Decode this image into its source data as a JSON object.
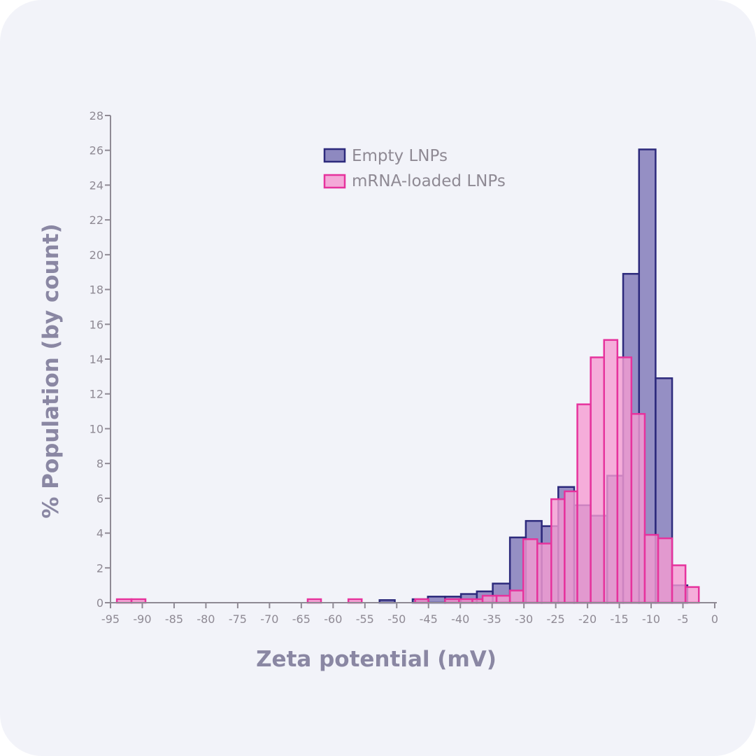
{
  "chart_data": {
    "type": "bar",
    "subtype": "overlapping-histogram",
    "xlabel": "Zeta potential (mV)",
    "ylabel": "% Population (by count)",
    "xlim": [
      -95,
      0
    ],
    "ylim": [
      0,
      28
    ],
    "xticks": [
      -95,
      -90,
      -85,
      -80,
      -75,
      -70,
      -65,
      -60,
      -55,
      -50,
      -45,
      -40,
      -35,
      -30,
      -25,
      -20,
      -15,
      -10,
      -5,
      0
    ],
    "yticks": [
      0,
      2,
      4,
      6,
      8,
      10,
      12,
      14,
      16,
      18,
      20,
      22,
      24,
      26,
      28
    ],
    "grid": false,
    "legend_position": "top-center",
    "series": [
      {
        "name": "Empty LNPs",
        "fill": "#7d76b6",
        "stroke": "#2d2a7c",
        "bins": [
          [
            -52.7,
            -50.3,
            0.15
          ],
          [
            -47.5,
            -45.1,
            0.2
          ],
          [
            -45.1,
            -42.4,
            0.35
          ],
          [
            -42.4,
            -39.9,
            0.35
          ],
          [
            -39.9,
            -37.4,
            0.5
          ],
          [
            -37.4,
            -34.9,
            0.65
          ],
          [
            -34.9,
            -32.2,
            1.1
          ],
          [
            -32.2,
            -29.7,
            3.75
          ],
          [
            -29.7,
            -27.2,
            4.7
          ],
          [
            -27.2,
            -24.6,
            4.4
          ],
          [
            -24.6,
            -22.1,
            6.65
          ],
          [
            -22.1,
            -19.5,
            5.6
          ],
          [
            -19.5,
            -16.9,
            5.0
          ],
          [
            -16.9,
            -14.4,
            7.3
          ],
          [
            -14.4,
            -11.9,
            18.9
          ],
          [
            -11.9,
            -9.3,
            26.05
          ],
          [
            -9.3,
            -6.7,
            12.9
          ],
          [
            -6.7,
            -4.3,
            1.0
          ]
        ]
      },
      {
        "name": "mRNA-loaded LNPs",
        "fill": "#f59bd2",
        "stroke": "#e6339d",
        "bins": [
          [
            -94.0,
            -91.7,
            0.2
          ],
          [
            -91.7,
            -89.5,
            0.2
          ],
          [
            -64.0,
            -61.9,
            0.2
          ],
          [
            -57.6,
            -55.5,
            0.2
          ],
          [
            -47.1,
            -45.0,
            0.2
          ],
          [
            -42.4,
            -40.2,
            0.2
          ],
          [
            -40.2,
            -38.1,
            0.2
          ],
          [
            -38.1,
            -36.5,
            0.2
          ],
          [
            -36.5,
            -34.3,
            0.4
          ],
          [
            -34.3,
            -32.2,
            0.4
          ],
          [
            -32.2,
            -30.1,
            0.7
          ],
          [
            -30.1,
            -27.9,
            3.65
          ],
          [
            -27.9,
            -25.7,
            3.4
          ],
          [
            -25.7,
            -23.6,
            5.95
          ],
          [
            -23.6,
            -21.6,
            6.4
          ],
          [
            -21.6,
            -19.5,
            11.4
          ],
          [
            -19.5,
            -17.4,
            14.1
          ],
          [
            -17.4,
            -15.3,
            15.1
          ],
          [
            -15.3,
            -13.1,
            14.1
          ],
          [
            -13.1,
            -11.0,
            10.85
          ],
          [
            -11.0,
            -8.9,
            3.9
          ],
          [
            -8.9,
            -6.7,
            3.7
          ],
          [
            -6.7,
            -4.6,
            2.15
          ],
          [
            -4.6,
            -2.5,
            0.9
          ]
        ]
      }
    ]
  }
}
